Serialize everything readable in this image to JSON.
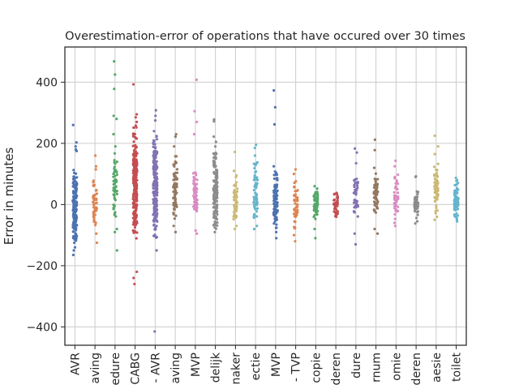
{
  "chart_data": {
    "type": "strip",
    "title": "Overestimation-error of operations that have occured over 30 times",
    "xlabel": "",
    "ylabel": "Error in minutes",
    "ylim": [
      -460,
      515
    ],
    "yticks": [
      -400,
      -200,
      0,
      200,
      400
    ],
    "grid": true,
    "legend": "none",
    "categories": [
      "AVR",
      "aving",
      "edure",
      "CABG",
      "- AVR",
      "aving",
      "MVP",
      "delijk",
      "naker",
      "ectie",
      "MVP",
      "- TVP",
      "copie",
      "deren",
      "dure",
      "rnum",
      "omie",
      "deren",
      "aesie",
      "toilet"
    ],
    "colors": [
      "#4c72b0",
      "#dd8452",
      "#55a868",
      "#c44e52",
      "#8172b3",
      "#937860",
      "#da8bc3",
      "#8c8c8c",
      "#ccb974",
      "#64b5cd",
      "#4c72b0",
      "#dd8452",
      "#55a868",
      "#c44e52",
      "#8172b3",
      "#937860",
      "#da8bc3",
      "#8c8c8c",
      "#ccb974",
      "#64b5cd"
    ],
    "series": [
      {
        "extremes": [
          260,
          203,
          190,
          180,
          175,
          -125,
          -140,
          -150,
          -165
        ],
        "range": [
          -120,
          120
        ],
        "n": 150
      },
      {
        "extremes": [
          160,
          125,
          115,
          -95,
          -125
        ],
        "range": [
          -80,
          80
        ],
        "n": 45
      },
      {
        "extremes": [
          468,
          425,
          378,
          290,
          280,
          230,
          190,
          -80,
          -90,
          -150
        ],
        "range": [
          -40,
          175
        ],
        "n": 60
      },
      {
        "extremes": [
          393,
          295,
          285,
          270,
          -220,
          -240,
          -260
        ],
        "range": [
          -120,
          260
        ],
        "n": 260
      },
      {
        "extremes": [
          308,
          290,
          275,
          240,
          -150,
          -415
        ],
        "range": [
          -110,
          225
        ],
        "n": 200
      },
      {
        "extremes": [
          230,
          222,
          190,
          -70,
          -90
        ],
        "range": [
          -50,
          165
        ],
        "n": 70
      },
      {
        "extremes": [
          408,
          305,
          270,
          230,
          -85,
          -95
        ],
        "range": [
          -50,
          130
        ],
        "n": 60
      },
      {
        "extremes": [
          278,
          272,
          222,
          205,
          190,
          -75,
          -90
        ],
        "range": [
          -80,
          175
        ],
        "n": 140
      },
      {
        "extremes": [
          172,
          110,
          -70,
          -80
        ],
        "range": [
          -60,
          100
        ],
        "n": 50
      },
      {
        "extremes": [
          195,
          185,
          160,
          -70,
          -80
        ],
        "range": [
          -60,
          140
        ],
        "n": 60
      },
      {
        "extremes": [
          373,
          318,
          262,
          125,
          -90,
          -110
        ],
        "range": [
          -80,
          110
        ],
        "n": 90
      },
      {
        "extremes": [
          115,
          100,
          -100,
          -120
        ],
        "range": [
          -80,
          80
        ],
        "n": 45
      },
      {
        "extremes": [
          60,
          52,
          -80,
          -110
        ],
        "range": [
          -50,
          45
        ],
        "n": 60
      },
      {
        "extremes": [
          38,
          35,
          -38,
          -40
        ],
        "range": [
          -35,
          35
        ],
        "n": 50
      },
      {
        "extremes": [
          183,
          170,
          135,
          -95,
          -130
        ],
        "range": [
          -60,
          100
        ],
        "n": 45
      },
      {
        "extremes": [
          212,
          178,
          120,
          -80,
          -95
        ],
        "range": [
          -40,
          105
        ],
        "n": 55
      },
      {
        "extremes": [
          143,
          125,
          -60,
          -70
        ],
        "range": [
          -50,
          100
        ],
        "n": 45
      },
      {
        "extremes": [
          92,
          90,
          -55,
          -62
        ],
        "range": [
          -50,
          50
        ],
        "n": 40
      },
      {
        "extremes": [
          225,
          190,
          165,
          -40,
          -50
        ],
        "range": [
          -40,
          140
        ],
        "n": 60
      },
      {
        "extremes": [
          87,
          80,
          -50,
          -55
        ],
        "range": [
          -50,
          80
        ],
        "n": 80
      }
    ]
  }
}
